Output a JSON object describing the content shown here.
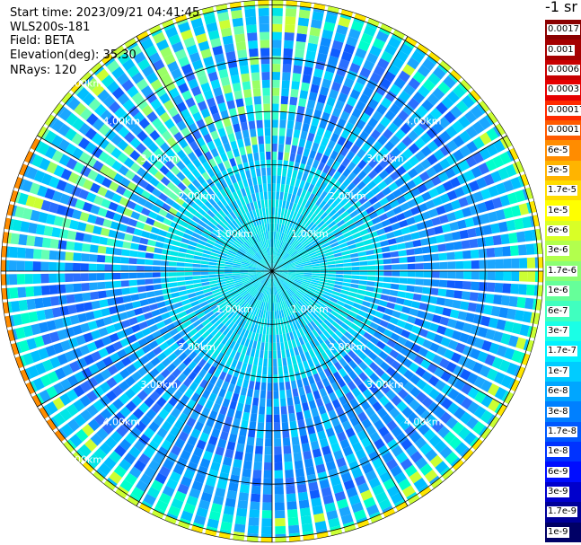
{
  "info": {
    "start_time": "Start time: 2023/09/21 04:41:45",
    "device": "WLS200s-181",
    "field": "Field: BETA",
    "elevation": "Elevation(deg): 35.30",
    "nrays": "NRays: 120"
  },
  "chart_data": {
    "type": "heatmap",
    "projection": "polar-ppi",
    "n_rays": 120,
    "range_unit": "km",
    "range_rings": [
      1.0,
      2.0,
      3.0,
      4.0,
      5.0
    ],
    "range_ring_labels": [
      "1.00km",
      "2.00km",
      "3.00km",
      "4.00km",
      "5.00km"
    ],
    "colorbar": {
      "title": "-1 sr",
      "levels": [
        {
          "label": "0.0017",
          "color": "#8b0000"
        },
        {
          "label": "0.001",
          "color": "#a50000"
        },
        {
          "label": "0.0006",
          "color": "#c80000"
        },
        {
          "label": "0.0003",
          "color": "#e60000"
        },
        {
          "label": "0.00017",
          "color": "#ff2a00"
        },
        {
          "label": "0.0001",
          "color": "#ff5a00"
        },
        {
          "label": "6e-5",
          "color": "#ff8c00"
        },
        {
          "label": "3e-5",
          "color": "#ffb400"
        },
        {
          "label": "1.7e-5",
          "color": "#ffdc00"
        },
        {
          "label": "1e-5",
          "color": "#ffff00"
        },
        {
          "label": "6e-6",
          "color": "#d9ff26"
        },
        {
          "label": "3e-6",
          "color": "#b2ff4d"
        },
        {
          "label": "1.7e-6",
          "color": "#8cff73"
        },
        {
          "label": "1e-6",
          "color": "#66ff99"
        },
        {
          "label": "6e-7",
          "color": "#40ffbf"
        },
        {
          "label": "3e-7",
          "color": "#1affe6"
        },
        {
          "label": "1.7e-7",
          "color": "#00f2ff"
        },
        {
          "label": "1e-7",
          "color": "#00ccff"
        },
        {
          "label": "6e-8",
          "color": "#00a6ff"
        },
        {
          "label": "3e-8",
          "color": "#0080ff"
        },
        {
          "label": "1.7e-8",
          "color": "#0059ff"
        },
        {
          "label": "1e-8",
          "color": "#0033ff"
        },
        {
          "label": "6e-9",
          "color": "#000dff"
        },
        {
          "label": "3e-9",
          "color": "#0000cc"
        },
        {
          "label": "1.7e-9",
          "color": "#000099"
        },
        {
          "label": "1e-9",
          "color": "#000066"
        }
      ]
    }
  }
}
